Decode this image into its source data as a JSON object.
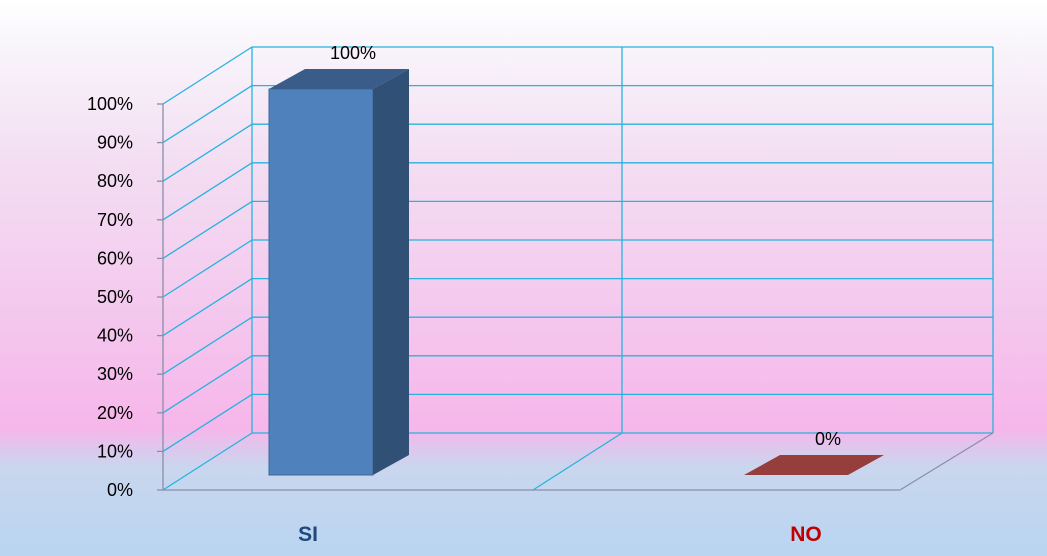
{
  "chart_data": {
    "type": "bar",
    "categories": [
      "SI",
      "NO"
    ],
    "values": [
      100,
      0
    ],
    "data_labels": [
      "100%",
      "0%"
    ],
    "ylim": [
      0,
      100
    ],
    "yticks": [
      "0%",
      "10%",
      "20%",
      "30%",
      "40%",
      "50%",
      "60%",
      "70%",
      "80%",
      "90%",
      "100%"
    ],
    "grid": true,
    "three_d": true,
    "legend": "none",
    "colors": {
      "bars": [
        "#4f81bd",
        "#c0504d"
      ],
      "category_labels": [
        "#1f497d",
        "#c00000"
      ],
      "grid": "#27b3de",
      "axis": "#8a8fa8"
    }
  }
}
